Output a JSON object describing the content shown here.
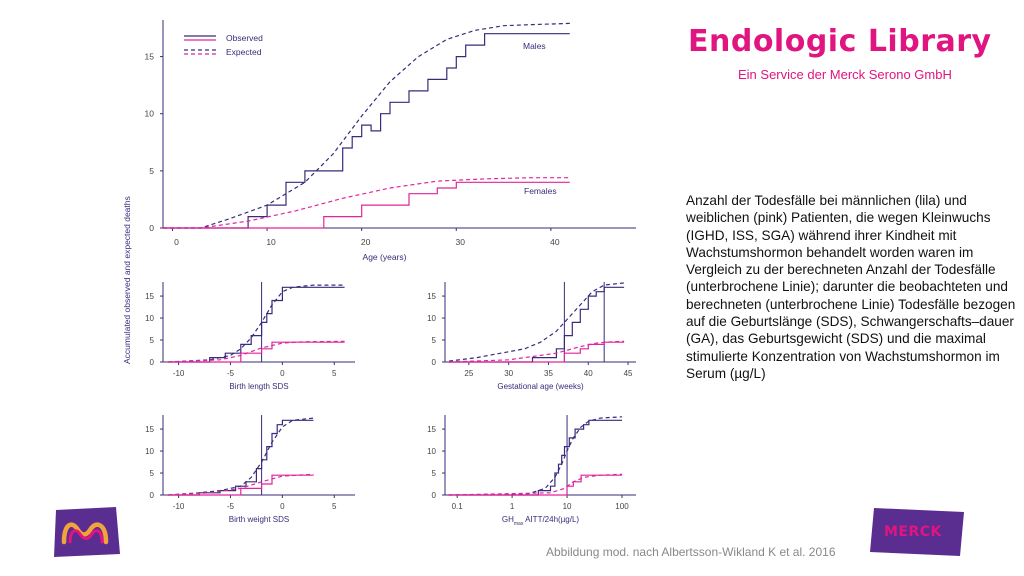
{
  "header": {
    "title": "Endologic Library",
    "subtitle": "Ein Service der Merck Serono GmbH"
  },
  "description": "Anzahl der Todesfälle bei männlichen (lila) und weiblichen (pink) Patienten, die wegen Kleinwuchs (IGHD, ISS, SGA) während ihrer Kindheit mit Wachstumshormon behandelt worden waren im Vergleich zu der berechneten Anzahl der Todesfälle (unterbrochene Linie); darunter die beobachteten und berechneten (unterbrochene Linie) Todesfälle bezogen auf die Geburtslänge (SDS), Schwangerschafts–dauer (GA), das Geburtsgewicht (SDS) und die maximal stimulierte Konzentration von Wachstumshormon im Serum (µg/L)",
  "citation": "Abbildung mod. nach Albertsson-Wikland K et al. 2016",
  "logos": {
    "right_text": "MERCK"
  },
  "colors": {
    "male": "#3b2a7a",
    "female": "#e0259a",
    "axis": "#3b2a7a",
    "brand": "#e0157f",
    "logo_bg": "#5a2d91"
  },
  "shared_ylabel": "Accumulated observed and expected deaths",
  "chart_data": [
    {
      "id": "age",
      "type": "line",
      "xlabel": "Age (years)",
      "xlim": [
        -1,
        49
      ],
      "ylim": [
        0,
        18.2
      ],
      "xticks": [
        0,
        10,
        20,
        30,
        40
      ],
      "yticks": [
        0,
        5,
        10,
        15
      ],
      "legend": {
        "placement": "top-left",
        "entries": [
          "Observed",
          "Expected"
        ]
      },
      "labels": [
        {
          "text": "Males",
          "series": "male"
        },
        {
          "text": "Females",
          "series": "female"
        }
      ],
      "series": [
        {
          "group": "male",
          "kind": "observed",
          "x": [
            -1,
            8,
            8,
            10,
            10,
            12,
            12,
            14,
            14,
            18,
            18,
            19,
            19,
            20,
            20,
            21,
            21,
            22,
            22,
            23,
            23,
            25,
            25,
            27,
            27,
            29,
            29,
            30,
            30,
            31,
            31,
            33,
            33,
            39,
            42
          ],
          "y": [
            0,
            0,
            1,
            1,
            2,
            2,
            4,
            4,
            5,
            5,
            7,
            7,
            8,
            8,
            9,
            9,
            8.5,
            8.5,
            10,
            10,
            11,
            11,
            12,
            12,
            13,
            13,
            14,
            14,
            15,
            15,
            16,
            16,
            17,
            17,
            17
          ]
        },
        {
          "group": "male",
          "kind": "expected",
          "x": [
            -1,
            3,
            6,
            10,
            14,
            17,
            20,
            23,
            26,
            29,
            32,
            35,
            38,
            42
          ],
          "y": [
            0,
            0,
            0.8,
            2,
            4,
            6.5,
            9.8,
            12.8,
            15,
            16.5,
            17.3,
            17.7,
            17.8,
            17.9
          ]
        },
        {
          "group": "female",
          "kind": "observed",
          "x": [
            -1,
            16,
            16,
            20,
            20,
            25,
            25,
            28,
            28,
            30,
            30,
            42
          ],
          "y": [
            0,
            0,
            1,
            1,
            2,
            2,
            3,
            3,
            3.5,
            3.5,
            4,
            4
          ]
        },
        {
          "group": "female",
          "kind": "expected",
          "x": [
            -1,
            3,
            8,
            13,
            18,
            23,
            28,
            33,
            38,
            42
          ],
          "y": [
            0,
            0,
            0.6,
            1.5,
            2.6,
            3.5,
            4.1,
            4.3,
            4.4,
            4.4
          ]
        }
      ]
    },
    {
      "id": "birth_length",
      "type": "line",
      "xlabel": "Birth length SDS",
      "xlim": [
        -11.5,
        7
      ],
      "ylim": [
        0,
        18.2
      ],
      "xticks": [
        -10,
        -5,
        0,
        5
      ],
      "yticks": [
        0,
        5,
        10,
        15
      ],
      "vline": -2,
      "series": [
        {
          "group": "male",
          "kind": "observed",
          "x": [
            -11,
            -7,
            -7,
            -5.5,
            -5.5,
            -4,
            -4,
            -3,
            -3,
            -2,
            -2,
            -1.5,
            -1.5,
            -1,
            -1,
            0,
            0,
            6
          ],
          "y": [
            0,
            0,
            1,
            1,
            2,
            2,
            4,
            4,
            6,
            6,
            9,
            9,
            11,
            11,
            14,
            14,
            17,
            17
          ]
        },
        {
          "group": "male",
          "kind": "expected",
          "x": [
            -11,
            -7,
            -5,
            -4,
            -3,
            -2,
            -1,
            0,
            1,
            3,
            6
          ],
          "y": [
            0,
            0.5,
            1.5,
            3,
            5.5,
            9,
            13,
            16,
            17,
            17.5,
            17.5
          ]
        },
        {
          "group": "female",
          "kind": "observed",
          "x": [
            -11,
            -4,
            -4,
            -2,
            -2,
            -1,
            -1,
            6
          ],
          "y": [
            0,
            0,
            2,
            2,
            3,
            3,
            4.5,
            4.5
          ]
        },
        {
          "group": "female",
          "kind": "expected",
          "x": [
            -11,
            -6,
            -4,
            -2,
            0,
            2,
            6
          ],
          "y": [
            0,
            0.5,
            1.5,
            3.2,
            4.3,
            4.6,
            4.7
          ]
        }
      ]
    },
    {
      "id": "gestational_age",
      "type": "line",
      "xlabel": "Gestational age (weeks)",
      "xlim": [
        22,
        46
      ],
      "ylim": [
        0,
        18.2
      ],
      "xticks": [
        25,
        30,
        35,
        40,
        45
      ],
      "yticks": [
        0,
        5,
        10,
        15
      ],
      "vlines": [
        37,
        42
      ],
      "series": [
        {
          "group": "male",
          "kind": "observed",
          "x": [
            22.5,
            33,
            33,
            36,
            36,
            37,
            37,
            38,
            38,
            39,
            39,
            40,
            40,
            41,
            41,
            42,
            42,
            44.5
          ],
          "y": [
            0,
            0,
            1,
            1,
            3,
            3,
            6,
            6,
            9,
            9,
            12,
            12,
            15,
            15,
            16,
            16,
            17,
            17
          ]
        },
        {
          "group": "male",
          "kind": "expected",
          "x": [
            22.5,
            26,
            29,
            32,
            34,
            36,
            37.5,
            39,
            40.5,
            42,
            44.5
          ],
          "y": [
            0.2,
            1,
            2,
            3,
            4.5,
            7,
            10,
            13,
            16,
            17.5,
            18
          ]
        },
        {
          "group": "female",
          "kind": "observed",
          "x": [
            22.5,
            37,
            37,
            39,
            39,
            40,
            40,
            42,
            42,
            44.5
          ],
          "y": [
            0,
            0,
            2,
            2,
            3,
            3,
            4,
            4,
            4.5,
            4.5
          ]
        },
        {
          "group": "female",
          "kind": "expected",
          "x": [
            22.5,
            30,
            36,
            39,
            41,
            43,
            44.5
          ],
          "y": [
            0,
            0.5,
            2,
            3.5,
            4.3,
            4.6,
            4.7
          ]
        }
      ]
    },
    {
      "id": "birth_weight",
      "type": "line",
      "xlabel": "Birth weight SDS",
      "xlim": [
        -11.5,
        7
      ],
      "ylim": [
        0,
        18.2
      ],
      "xticks": [
        -10,
        -5,
        0,
        5
      ],
      "yticks": [
        0,
        5,
        10,
        15
      ],
      "vline": -2,
      "series": [
        {
          "group": "male",
          "kind": "observed",
          "x": [
            -11,
            -8,
            -8,
            -6,
            -6,
            -4.5,
            -4.5,
            -3.5,
            -3.5,
            -2.5,
            -2.5,
            -2,
            -2,
            -1.5,
            -1.5,
            -1,
            -1,
            -0.5,
            -0.5,
            0,
            0,
            3
          ],
          "y": [
            0,
            0,
            0.5,
            0.5,
            1,
            1,
            2,
            2,
            3,
            3,
            6,
            6,
            8,
            8,
            11,
            11,
            14,
            14,
            16,
            16,
            17,
            17
          ]
        },
        {
          "group": "male",
          "kind": "expected",
          "x": [
            -11,
            -8,
            -6,
            -4,
            -3,
            -2,
            -1,
            0,
            1,
            3
          ],
          "y": [
            0,
            0.5,
            1,
            2,
            4,
            7.5,
            12,
            15.5,
            17,
            17.5
          ]
        },
        {
          "group": "female",
          "kind": "observed",
          "x": [
            -11,
            -4,
            -4,
            -2,
            -2,
            -1,
            -1,
            3
          ],
          "y": [
            0,
            0,
            1.5,
            1.5,
            2.5,
            2.5,
            4.5,
            4.5
          ]
        },
        {
          "group": "female",
          "kind": "expected",
          "x": [
            -11,
            -7,
            -4,
            -2,
            0,
            3
          ],
          "y": [
            0,
            0.5,
            1.5,
            3,
            4.3,
            4.7
          ]
        }
      ]
    },
    {
      "id": "gh_max",
      "type": "line",
      "xlabel": "GH",
      "xlabel_sub": "max",
      "xlabel_rest": " AITT/24h(µg/L)",
      "xscale": "log",
      "xlim": [
        0.06,
        180
      ],
      "ylim": [
        0,
        18.2
      ],
      "xticks": [
        0.1,
        1,
        10,
        100
      ],
      "yticks": [
        0,
        5,
        10,
        15
      ],
      "vline": 10,
      "series": [
        {
          "group": "male",
          "kind": "observed",
          "x": [
            0.07,
            3,
            3,
            5,
            5,
            6,
            6,
            7,
            7,
            8,
            8,
            9,
            9,
            11,
            11,
            14,
            14,
            20,
            20,
            25,
            25,
            100
          ],
          "y": [
            0,
            0,
            1,
            1,
            2,
            2,
            5,
            5,
            7,
            7,
            9,
            9,
            11,
            11,
            13,
            13,
            15,
            15,
            16,
            16,
            17,
            17
          ]
        },
        {
          "group": "male",
          "kind": "expected",
          "x": [
            0.07,
            2,
            4,
            6,
            8,
            10,
            13,
            18,
            25,
            40,
            100
          ],
          "y": [
            0,
            0.3,
            1.5,
            4,
            7,
            10,
            13,
            15.5,
            16.8,
            17.5,
            17.8
          ]
        },
        {
          "group": "female",
          "kind": "observed",
          "x": [
            0.07,
            10,
            10,
            13,
            13,
            18,
            18,
            100
          ],
          "y": [
            0,
            0,
            2,
            2,
            3,
            3,
            4.5,
            4.5
          ]
        },
        {
          "group": "female",
          "kind": "expected",
          "x": [
            0.07,
            5,
            9,
            13,
            20,
            40,
            100
          ],
          "y": [
            0,
            0.5,
            1.5,
            3,
            4,
            4.5,
            4.7
          ]
        }
      ]
    }
  ]
}
